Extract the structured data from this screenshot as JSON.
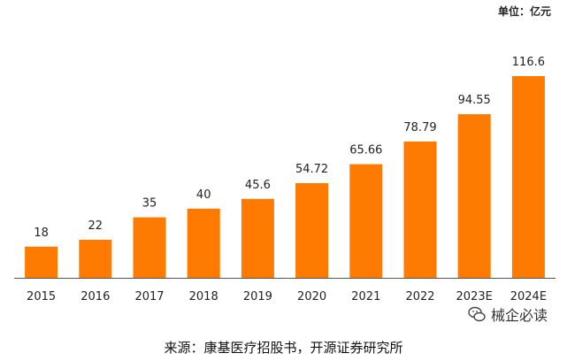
{
  "unit": "单位：亿元",
  "source": "来源：康基医疗招股书，开源证券研究所",
  "watermark_text": "械企必读",
  "colors": {
    "bar": "#FF7A00",
    "axis": "#555555"
  },
  "chart_data": {
    "type": "bar",
    "categories": [
      "2015",
      "2016",
      "2017",
      "2018",
      "2019",
      "2020",
      "2021",
      "2022",
      "2023E",
      "2024E"
    ],
    "values": [
      18,
      22,
      35,
      40,
      45.6,
      54.72,
      65.66,
      78.79,
      94.55,
      116.6
    ],
    "value_labels": [
      "18",
      "22",
      "35",
      "40",
      "45.6",
      "54.72",
      "65.66",
      "78.79",
      "94.55",
      "116.6"
    ],
    "title": "",
    "xlabel": "",
    "ylabel": "",
    "ylim": [
      0,
      125
    ],
    "grid": false,
    "legend": "none"
  }
}
